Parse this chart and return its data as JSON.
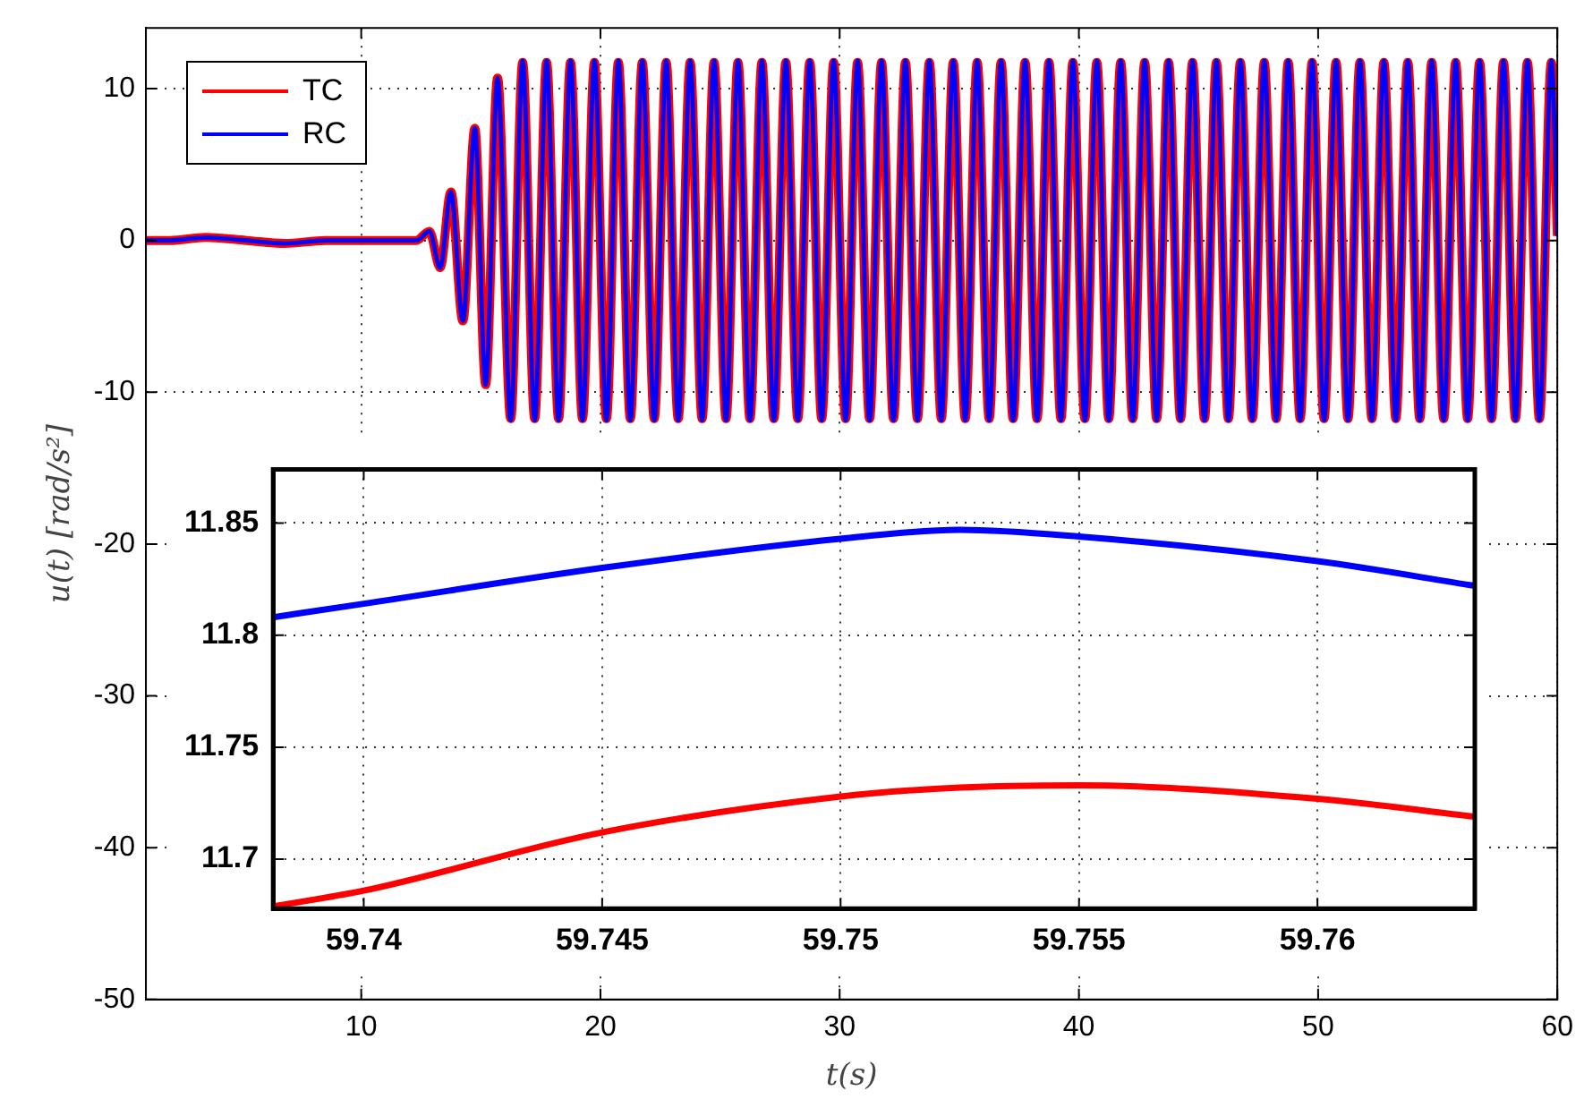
{
  "chart_data": [
    {
      "type": "line",
      "xlabel": "t(s)",
      "ylabel": "u(t) [rad/s²]",
      "legend": "top left",
      "grid": true,
      "marker": "none",
      "xlim": [
        1,
        60
      ],
      "ylim": [
        -50,
        14
      ],
      "xticks": [
        10,
        20,
        30,
        40,
        50,
        60
      ],
      "yticks": [
        -50,
        -40,
        -30,
        -20,
        -10,
        0,
        10
      ],
      "x": [
        1,
        2,
        3.5,
        5.2,
        6.8,
        8.5,
        12.3,
        12.85,
        13.3,
        13.75,
        14.25,
        14.75,
        15.2,
        15.7,
        16.25,
        16.75,
        17.25,
        17.75,
        18.25,
        18.75,
        19.25,
        19.75,
        20.25,
        20.75,
        21.25,
        21.75,
        22.25,
        22.75,
        23.25,
        23.75,
        24.25,
        24.75,
        25.25,
        25.75,
        26.25,
        26.75,
        27.25,
        27.75,
        28.25,
        28.75,
        29.25,
        29.75,
        30.25,
        30.75,
        31.25,
        31.75,
        32.25,
        32.75,
        33.25,
        33.75,
        34.25,
        34.75,
        35.25,
        35.75,
        36.25,
        36.75,
        37.25,
        37.75,
        38.25,
        38.75,
        39.25,
        39.75,
        40.25,
        40.75,
        41.25,
        41.75,
        42.25,
        42.75,
        43.25,
        43.75,
        44.25,
        44.75,
        45.25,
        45.75,
        46.25,
        46.75,
        47.25,
        47.75,
        48.25,
        48.75,
        49.25,
        49.75,
        50.25,
        50.75,
        51.25,
        51.75,
        52.25,
        52.75,
        53.25,
        53.75,
        54.25,
        54.75,
        55.25,
        55.75,
        56.25,
        56.75,
        57.25,
        57.75,
        58.25,
        58.75,
        59.25,
        59.75,
        60
      ],
      "series": [
        {
          "name": "TC",
          "color": "#ff0000",
          "values": [
            0,
            0,
            0.2,
            0,
            -0.2,
            0,
            0,
            0.6,
            -1.8,
            3.2,
            -5.3,
            7.4,
            -9.5,
            10.7,
            -11.73,
            11.73,
            -11.73,
            11.73,
            -11.73,
            11.73,
            -11.73,
            11.73,
            -11.73,
            11.73,
            -11.73,
            11.73,
            -11.73,
            11.73,
            -11.73,
            11.73,
            -11.73,
            11.73,
            -11.73,
            11.73,
            -11.73,
            11.73,
            -11.73,
            11.73,
            -11.73,
            11.73,
            -11.73,
            11.73,
            -11.73,
            11.73,
            -11.73,
            11.73,
            -11.73,
            11.73,
            -11.73,
            11.73,
            -11.73,
            11.73,
            -11.73,
            11.73,
            -11.73,
            11.73,
            -11.73,
            11.73,
            -11.73,
            11.73,
            -11.73,
            11.73,
            -11.73,
            11.73,
            -11.73,
            11.73,
            -11.73,
            11.73,
            -11.73,
            11.73,
            -11.73,
            11.73,
            -11.73,
            11.73,
            -11.73,
            11.73,
            -11.73,
            11.73,
            -11.73,
            11.73,
            -11.73,
            11.73,
            -11.73,
            11.73,
            -11.73,
            11.73,
            -11.73,
            11.73,
            -11.73,
            11.73,
            -11.73,
            11.73,
            -11.73,
            11.73,
            -11.73,
            11.73,
            -11.73,
            11.73,
            -11.73,
            11.73,
            -11.73,
            11.73,
            0.3
          ]
        },
        {
          "name": "RC",
          "color": "#0000ff",
          "values": [
            0,
            0,
            0.2,
            0,
            -0.2,
            0,
            0,
            0.6,
            -1.8,
            3.2,
            -5.3,
            7.4,
            -9.5,
            10.7,
            -11.85,
            11.85,
            -11.85,
            11.85,
            -11.85,
            11.85,
            -11.85,
            11.85,
            -11.85,
            11.85,
            -11.85,
            11.85,
            -11.85,
            11.85,
            -11.85,
            11.85,
            -11.85,
            11.85,
            -11.85,
            11.85,
            -11.85,
            11.85,
            -11.85,
            11.85,
            -11.85,
            11.85,
            -11.85,
            11.85,
            -11.85,
            11.85,
            -11.85,
            11.85,
            -11.85,
            11.85,
            -11.85,
            11.85,
            -11.85,
            11.85,
            -11.85,
            11.85,
            -11.85,
            11.85,
            -11.85,
            11.85,
            -11.85,
            11.85,
            -11.85,
            11.85,
            -11.85,
            11.85,
            -11.85,
            11.85,
            -11.85,
            11.85,
            -11.85,
            11.85,
            -11.85,
            11.85,
            -11.85,
            11.85,
            -11.85,
            11.85,
            -11.85,
            11.85,
            -11.85,
            11.85,
            -11.85,
            11.85,
            -11.85,
            11.85,
            -11.85,
            11.85,
            -11.85,
            11.85,
            -11.85,
            11.85,
            -11.85,
            11.85,
            -11.85,
            11.85,
            -11.85,
            11.85,
            -11.85,
            11.85,
            -11.85,
            11.85,
            -11.85,
            11.85,
            0.3
          ]
        }
      ]
    },
    {
      "type": "line",
      "grid": true,
      "marker": "none",
      "xlim": [
        59.7381,
        59.7633
      ],
      "ylim": [
        11.678,
        11.874
      ],
      "xticks": [
        59.74,
        59.745,
        59.75,
        59.755,
        59.76
      ],
      "yticks": [
        11.7,
        11.75,
        11.8,
        11.85
      ],
      "x": [
        59.7381,
        59.74,
        59.745,
        59.75,
        59.7525,
        59.755,
        59.76,
        59.7633
      ],
      "series": [
        {
          "color": "#ff0000",
          "values": [
            11.679,
            11.686,
            11.712,
            11.728,
            11.732,
            11.733,
            11.727,
            11.719
          ]
        },
        {
          "color": "#0000ff",
          "values": [
            11.808,
            11.814,
            11.83,
            11.843,
            11.847,
            11.844,
            11.833,
            11.822
          ]
        }
      ]
    }
  ]
}
